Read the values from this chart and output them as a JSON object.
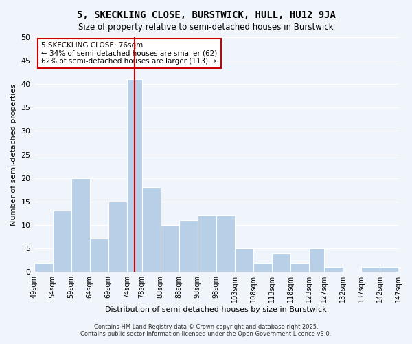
{
  "title": "5, SKECKLING CLOSE, BURSTWICK, HULL, HU12 9JA",
  "subtitle": "Size of property relative to semi-detached houses in Burstwick",
  "xlabel": "Distribution of semi-detached houses by size in Burstwick",
  "ylabel": "Number of semi-detached properties",
  "footer_line1": "Contains HM Land Registry data © Crown copyright and database right 2025.",
  "footer_line2": "Contains public sector information licensed under the Open Government Licence v3.0.",
  "annotation_title": "5 SKECKLING CLOSE: 76sqm",
  "annotation_line1": "← 34% of semi-detached houses are smaller (62)",
  "annotation_line2": "62% of semi-detached houses are larger (113) →",
  "bar_color": "#b8cfe8",
  "bar_edge_color": "#ffffff",
  "property_line_x": 76,
  "property_line_color": "#cc0000",
  "bin_edges": [
    49,
    54,
    59,
    64,
    69,
    74,
    78,
    83,
    88,
    93,
    98,
    103,
    108,
    113,
    118,
    123,
    127,
    132,
    137,
    142,
    147
  ],
  "bin_labels": [
    "49sqm",
    "54sqm",
    "59sqm",
    "64sqm",
    "69sqm",
    "74sqm",
    "78sqm",
    "83sqm",
    "88sqm",
    "93sqm",
    "98sqm",
    "103sqm",
    "108sqm",
    "113sqm",
    "118sqm",
    "123sqm",
    "127sqm",
    "132sqm",
    "137sqm",
    "142sqm",
    "147sqm"
  ],
  "counts": [
    2,
    13,
    20,
    7,
    15,
    41,
    18,
    10,
    11,
    12,
    12,
    5,
    2,
    4,
    2,
    5,
    1,
    0,
    1,
    1
  ],
  "ylim": [
    0,
    50
  ],
  "yticks": [
    0,
    5,
    10,
    15,
    20,
    25,
    30,
    35,
    40,
    45,
    50
  ],
  "background_color": "#f0f5fc",
  "grid_color": "#ffffff",
  "annotation_box_color": "#ffffff",
  "annotation_box_edge_color": "#cc0000"
}
